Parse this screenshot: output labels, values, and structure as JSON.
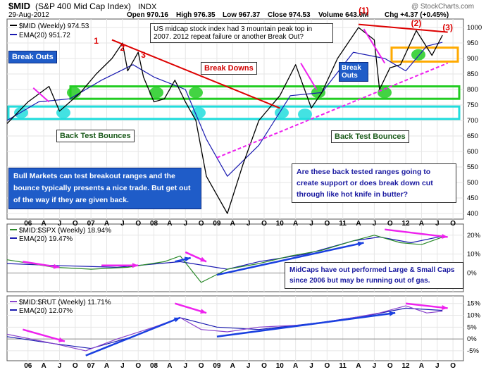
{
  "header": {
    "symbol": "$MID",
    "name": "(S&P 400 Mid Cap Index)",
    "exchange": "INDX",
    "watermark": "@ StockCharts.com",
    "date": "29-Aug-2012",
    "open": "Open 970.16",
    "high": "High 976.35",
    "low": "Low 967.37",
    "close": "Close 974.53",
    "volume": "Volume 643.0M",
    "chg": "Chg +4.37 (+0.45%)"
  },
  "annotations": {
    "top_note": "US midcap stock index had 3 mountain peak top in 2007. 2012 repeat failure or another Break Out?",
    "break_outs_left": "Break Outs",
    "break_outs_right": "Break Outs",
    "break_downs": "Break Downs",
    "back_test_left": "Back Test Bounces",
    "back_test_right": "Back Test Bounces",
    "bull_note": "Bull Markets can test breakout ranges and the bounce typically presents a nice trade. But get out of the way if they are given back.",
    "question_note": "Are these back tested ranges going to create support or does break down cut through like hot knife in butter?",
    "midcap_note": "MidCaps have out performed Large & Small Caps since 2006 but may be running out of gas.",
    "peaks_2007": [
      "1",
      "2",
      "3"
    ],
    "peaks_2012": [
      "(1)",
      "(2)",
      "(3)"
    ]
  },
  "colors": {
    "price_line": "#000000",
    "ema_line": "#1a1ab0",
    "green_band": "#22cc22",
    "cyan_band": "#22dddd",
    "orange_band": "#ffaa00",
    "red_trend": "#dd0000",
    "magenta_trend": "#ee22ee",
    "blue_arrow": "#1a40e0",
    "rel_spx_line": "#2a8a2a",
    "rel_rut_line": "#8a44cc"
  },
  "chart_data": [
    {
      "type": "line",
      "title": "$MID (S&P 400 Mid Cap Index) INDX",
      "series": [
        {
          "name": "$MID (Weekly) 974.53",
          "x": [
            "2005-09",
            "2006-01",
            "2006-05",
            "2006-07",
            "2006-11",
            "2007-02",
            "2007-05",
            "2007-07",
            "2007-08",
            "2007-10",
            "2007-11",
            "2008-01",
            "2008-03",
            "2008-05",
            "2008-07",
            "2008-09",
            "2008-11",
            "2009-03",
            "2009-06",
            "2009-09",
            "2010-01",
            "2010-04",
            "2010-07",
            "2010-09",
            "2010-12",
            "2011-04",
            "2011-07",
            "2011-08",
            "2011-10",
            "2011-12",
            "2012-03",
            "2012-06",
            "2012-08"
          ],
          "values": [
            690,
            760,
            810,
            730,
            790,
            850,
            900,
            950,
            860,
            920,
            840,
            760,
            770,
            830,
            760,
            700,
            520,
            400,
            560,
            700,
            780,
            880,
            740,
            790,
            900,
            1000,
            960,
            800,
            870,
            880,
            990,
            910,
            975
          ]
        },
        {
          "name": "EMA(20) 951.72",
          "x": [
            "2005-09",
            "2006-03",
            "2006-09",
            "2007-03",
            "2007-09",
            "2008-01",
            "2008-07",
            "2008-11",
            "2009-03",
            "2009-09",
            "2010-03",
            "2010-09",
            "2011-03",
            "2011-09",
            "2012-01",
            "2012-05",
            "2012-08"
          ],
          "values": [
            700,
            760,
            770,
            830,
            880,
            840,
            800,
            640,
            520,
            620,
            780,
            790,
            920,
            900,
            860,
            940,
            952
          ]
        }
      ],
      "ylim": [
        400,
        1000
      ],
      "y_ticks": [
        "1000",
        "950",
        "900",
        "850",
        "800",
        "750",
        "700",
        "650",
        "600",
        "550",
        "500",
        "450",
        "400"
      ]
    },
    {
      "type": "line",
      "title": "$MID:$SPX (Weekly) 18.94%",
      "series": [
        {
          "name": "$MID:$SPX (Weekly) 18.94%",
          "x": [
            "2005-09",
            "2006-06",
            "2007-01",
            "2007-08",
            "2008-03",
            "2008-06",
            "2008-10",
            "2009-03",
            "2009-09",
            "2010-03",
            "2010-09",
            "2011-03",
            "2011-07",
            "2011-12",
            "2012-04",
            "2012-08"
          ],
          "values": [
            7,
            3,
            2,
            3,
            6,
            9,
            -5,
            2,
            5,
            9,
            12,
            17,
            20,
            16,
            15,
            18.94
          ]
        },
        {
          "name": "EMA(20) 19.47%",
          "x": [
            "2005-09",
            "2006-06",
            "2007-06",
            "2008-06",
            "2009-03",
            "2009-09",
            "2010-06",
            "2011-03",
            "2011-08",
            "2012-02",
            "2012-08"
          ],
          "values": [
            5,
            4,
            3,
            6,
            2,
            6,
            10,
            17,
            19,
            16,
            19.47
          ]
        }
      ],
      "y_ticks": [
        "20%",
        "10%",
        "0%"
      ]
    },
    {
      "type": "line",
      "title": "$MID:$RUT (Weekly) 11.71%",
      "series": [
        {
          "name": "$MID:$RUT (Weekly) 11.71%",
          "x": [
            "2005-09",
            "2006-06",
            "2006-12",
            "2007-06",
            "2008-01",
            "2008-06",
            "2008-10",
            "2009-03",
            "2009-09",
            "2010-06",
            "2011-03",
            "2011-08",
            "2012-01",
            "2012-05",
            "2012-08"
          ],
          "values": [
            2,
            -2,
            -5,
            0,
            5,
            9,
            4,
            3,
            5,
            6,
            9,
            11,
            14,
            11,
            11.71
          ]
        },
        {
          "name": "EMA(20) 12.07%",
          "x": [
            "2005-09",
            "2006-06",
            "2007-01",
            "2007-09",
            "2008-06",
            "2009-01",
            "2009-09",
            "2010-09",
            "2011-06",
            "2012-01",
            "2012-08"
          ],
          "values": [
            1,
            -2,
            -4,
            1,
            9,
            5,
            4,
            7,
            10,
            13,
            12.07
          ]
        }
      ],
      "y_ticks": [
        "15%",
        "10%",
        "5%",
        "0%",
        "-5%"
      ]
    }
  ],
  "x_axis": {
    "tick_labels": [
      "06",
      "A",
      "J",
      "O",
      "07",
      "A",
      "J",
      "O",
      "08",
      "A",
      "J",
      "O",
      "09",
      "A",
      "J",
      "O",
      "10",
      "A",
      "J",
      "O",
      "11",
      "A",
      "J",
      "O",
      "12",
      "A",
      "J",
      "O"
    ]
  }
}
